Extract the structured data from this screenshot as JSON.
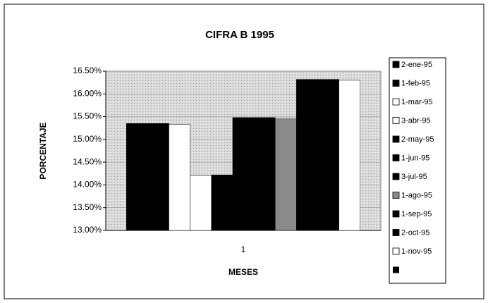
{
  "chart_data": {
    "type": "bar",
    "title": "CIFRA B 1995",
    "xlabel": "MESES",
    "ylabel": "PORCENTAJE",
    "categories": [
      "1"
    ],
    "series": [
      {
        "name": "2-ene-95",
        "color": "#000000",
        "values": [
          15.35
        ]
      },
      {
        "name": "1-feb-95",
        "color": "#000000",
        "values": [
          15.35
        ]
      },
      {
        "name": "1-mar-95",
        "color": "#ffffff",
        "values": [
          15.33
        ]
      },
      {
        "name": "3-abr-95",
        "color": "#ffffff",
        "values": [
          14.2
        ]
      },
      {
        "name": "2-may-95",
        "color": "#000000",
        "values": [
          14.22
        ]
      },
      {
        "name": "1-jun-95",
        "color": "#000000",
        "values": [
          15.48
        ]
      },
      {
        "name": "3-jul-95",
        "color": "#000000",
        "values": [
          15.48
        ]
      },
      {
        "name": "1-ago-95",
        "color": "#8a8a8a",
        "values": [
          15.45
        ]
      },
      {
        "name": "1-sep-95",
        "color": "#000000",
        "values": [
          16.32
        ]
      },
      {
        "name": "2-oct-95",
        "color": "#000000",
        "values": [
          16.32
        ]
      },
      {
        "name": "1-nov-95",
        "color": "#ffffff",
        "values": [
          16.3
        ]
      }
    ],
    "ylim": [
      13,
      16.5
    ],
    "yticks": [
      {
        "value": 13,
        "label": "13.00%"
      },
      {
        "value": 13.5,
        "label": "13.50%"
      },
      {
        "value": 14,
        "label": "14.00%"
      },
      {
        "value": 14.5,
        "label": "14.50%"
      },
      {
        "value": 15,
        "label": "15.00%"
      },
      {
        "value": 15.5,
        "label": "15.50%"
      },
      {
        "value": 16,
        "label": "16.00%"
      },
      {
        "value": 16.5,
        "label": "16.50%"
      }
    ],
    "grid": true,
    "legend": "right"
  }
}
